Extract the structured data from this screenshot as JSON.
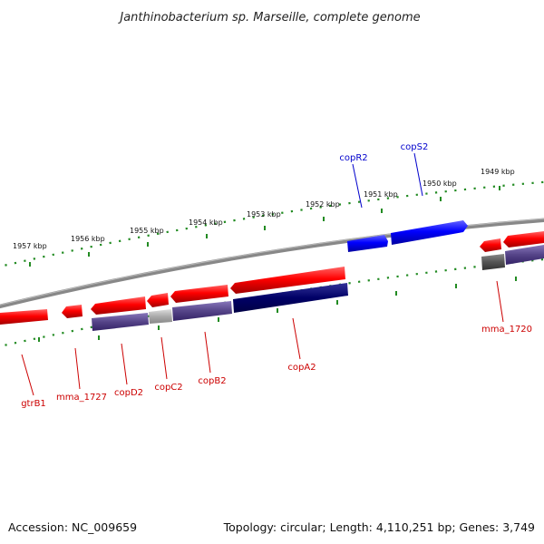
{
  "title": "Janthinobacterium sp. Marseille, complete genome",
  "footer": {
    "accession": "Accession: NC_009659",
    "summary": "Topology: circular; Length: 4,110,251 bp; Genes: 3,749"
  },
  "scale_labels": [
    "1957 kbp",
    "1956 kbp",
    "1955 kbp",
    "1954 kbp",
    "1953 kbp",
    "1952 kbp",
    "1951 kbp",
    "1950 kbp",
    "1949 kbp"
  ],
  "gene_labels": {
    "forward": [
      "copR2",
      "copS2"
    ],
    "reverse": [
      "gtrB1",
      "mma_1727",
      "copD2",
      "copC2",
      "copB2",
      "copA2",
      "mma_1720"
    ]
  },
  "colors": {
    "forward_gene": "#0000ee",
    "reverse_gene": "#ee0000",
    "backbone": "#888888",
    "ticks": "#228b22",
    "cog_purple": "#554488",
    "cog_navy": "#000066",
    "cog_gray": "#aaaaaa",
    "cog_dark_gray": "#555555"
  }
}
